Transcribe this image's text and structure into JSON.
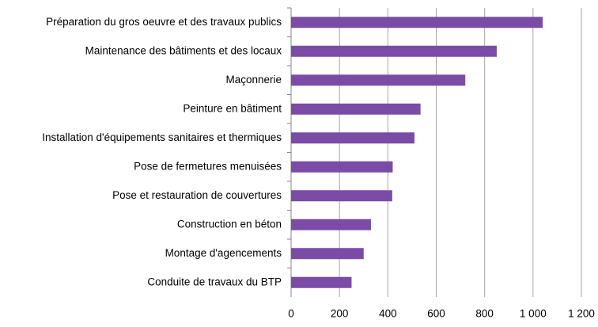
{
  "chart_data": {
    "type": "hbar",
    "categories": [
      "Préparation du gros oeuvre et des travaux publics",
      "Maintenance des bâtiments et des locaux",
      "Maçonnerie",
      "Peinture en bâtiment",
      "Installation d'équipements sanitaires et thermiques",
      "Pose de fermetures menuisées",
      "Pose et restauration de couvertures",
      "Construction en béton",
      "Montage d'agencements",
      "Conduite de travaux du BTP"
    ],
    "values": [
      1040,
      850,
      720,
      535,
      510,
      420,
      418,
      330,
      300,
      250
    ],
    "color": "#7a4ca6",
    "xlim": [
      0,
      1200
    ],
    "xticks": [
      0,
      200,
      400,
      600,
      800,
      {
        "value": 1000,
        "label": "1 000"
      },
      {
        "value": 1200,
        "label": "1 200"
      }
    ],
    "grid": true
  }
}
